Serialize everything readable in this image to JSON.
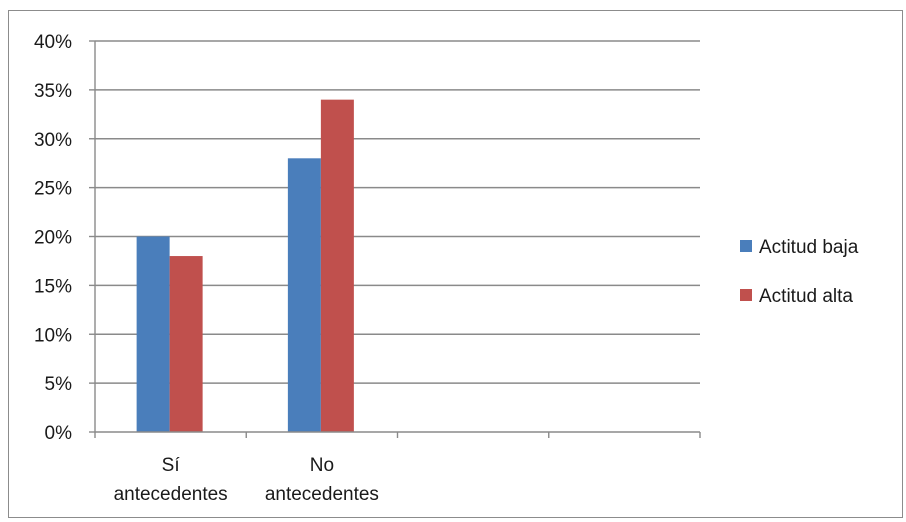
{
  "chart_data": {
    "type": "bar",
    "categories": [
      [
        "Sí",
        "antecedentes"
      ],
      [
        "No",
        "antecedentes"
      ],
      [
        "",
        ""
      ],
      [
        "",
        ""
      ]
    ],
    "series": [
      {
        "name": "Actitud baja",
        "color": "#4a7ebb",
        "values": [
          20,
          28,
          null,
          null
        ]
      },
      {
        "name": "Actitud alta",
        "color": "#c0504d",
        "values": [
          18,
          34,
          null,
          null
        ]
      }
    ],
    "yticks": [
      "0%",
      "5%",
      "10%",
      "15%",
      "20%",
      "25%",
      "30%",
      "35%",
      "40%"
    ],
    "ylim": [
      0,
      40
    ],
    "grid": true,
    "legend": "right"
  }
}
